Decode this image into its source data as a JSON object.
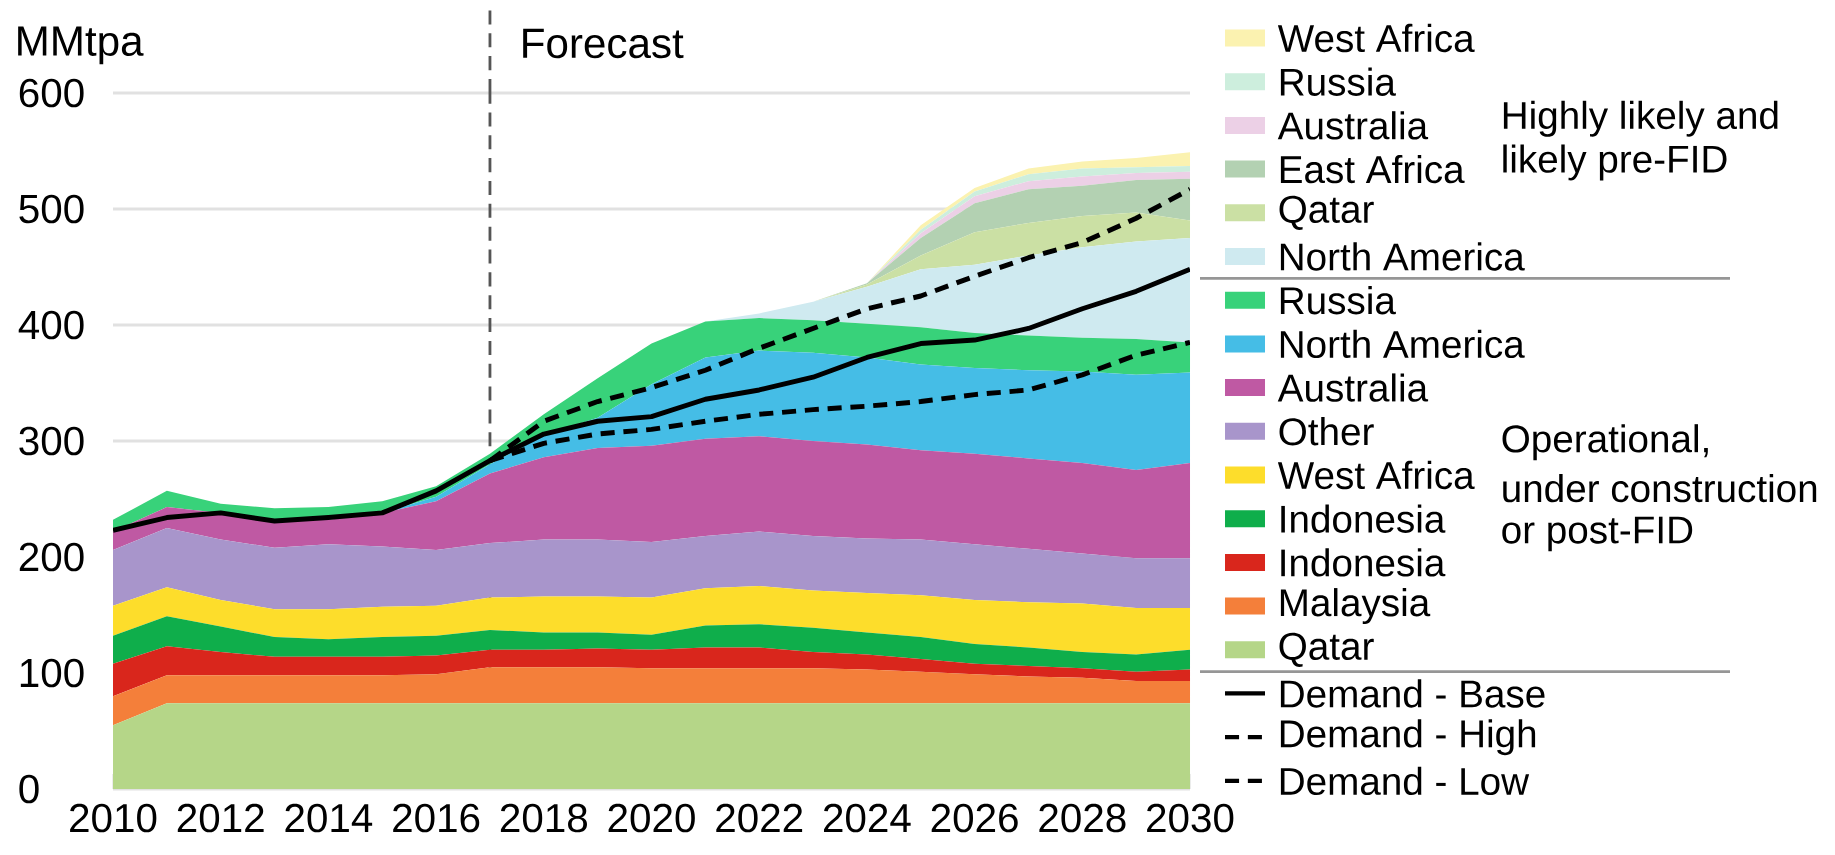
{
  "chart_data": {
    "type": "area",
    "stacked": true,
    "ylabel": "MMtpa",
    "x": [
      2010,
      2011,
      2012,
      2013,
      2014,
      2015,
      2016,
      2017,
      2018,
      2019,
      2020,
      2021,
      2022,
      2023,
      2024,
      2025,
      2026,
      2027,
      2028,
      2029,
      2030
    ],
    "xlim": [
      2010,
      2030
    ],
    "xticks": [
      2010,
      2012,
      2014,
      2016,
      2018,
      2020,
      2022,
      2024,
      2026,
      2028,
      2030
    ],
    "ylim": [
      0,
      600
    ],
    "yticks": [
      0,
      100,
      200,
      300,
      400,
      500,
      600
    ],
    "grid": "y",
    "legend": "right",
    "ref_lines": [
      {
        "axis": "x",
        "value": 2017,
        "label": "Forecast",
        "color": "#555555",
        "line_style": "dashed"
      }
    ],
    "annotations": [
      "Highly likely and",
      "likely pre-FID",
      "Operational,",
      "under construction",
      "or post-FID"
    ],
    "series": [
      {
        "name": "Qatar",
        "color": "#b5d688",
        "values": [
          55,
          74,
          74,
          74,
          74,
          74,
          74,
          74,
          74,
          74,
          74,
          74,
          74,
          74,
          74,
          74,
          74,
          74,
          74,
          74,
          74
        ]
      },
      {
        "name": "Malaysia",
        "color": "#f47f3a",
        "values": [
          25,
          24,
          24,
          24,
          24,
          24,
          25,
          31,
          31,
          31,
          30,
          30,
          30,
          30,
          29,
          27,
          25,
          23,
          22,
          19,
          19
        ]
      },
      {
        "name": "Indonesia",
        "color": "#d9261c",
        "values": [
          28,
          25,
          20,
          16,
          16,
          16,
          16,
          15,
          15,
          16,
          16,
          18,
          18,
          14,
          13,
          11,
          9,
          9,
          8,
          8,
          10
        ]
      },
      {
        "name": "Indonesia",
        "color": "#0fae4b",
        "values": [
          24,
          26,
          22,
          17,
          15,
          17,
          17,
          17,
          15,
          14,
          13,
          19,
          20,
          21,
          19,
          19,
          17,
          16,
          14,
          15,
          17
        ]
      },
      {
        "name": "West Africa",
        "color": "#fddd2b",
        "values": [
          26,
          25,
          23,
          24,
          26,
          26,
          26,
          28,
          31,
          31,
          32,
          32,
          33,
          32,
          34,
          36,
          38,
          39,
          42,
          40,
          36
        ]
      },
      {
        "name": "Other",
        "color": "#a895cb",
        "values": [
          48,
          51,
          52,
          53,
          56,
          52,
          48,
          47,
          49,
          49,
          48,
          45,
          47,
          47,
          47,
          48,
          48,
          46,
          43,
          43,
          43
        ]
      },
      {
        "name": "Australia",
        "color": "#bf59a3",
        "values": [
          16,
          18,
          23,
          23,
          21,
          29,
          42,
          60,
          71,
          79,
          83,
          84,
          82,
          82,
          81,
          77,
          78,
          78,
          78,
          76,
          82
        ]
      },
      {
        "name": "North America",
        "color": "#45bde6",
        "values": [
          0,
          0,
          0,
          0,
          0,
          0,
          4,
          8,
          19,
          26,
          53,
          70,
          74,
          76,
          75,
          74,
          74,
          76,
          79,
          82,
          78
        ]
      },
      {
        "name": "Russia",
        "color": "#38d27a",
        "values": [
          10,
          14,
          8,
          11,
          11,
          10,
          9,
          9,
          18,
          34,
          35,
          31,
          28,
          28,
          29,
          32,
          30,
          30,
          29,
          31,
          26
        ]
      },
      {
        "name": "North America",
        "color": "#cfeaf0",
        "values": [
          0,
          0,
          0,
          0,
          0,
          0,
          0,
          0,
          0,
          0,
          0,
          0,
          4,
          16,
          32,
          50,
          59,
          69,
          78,
          84,
          90
        ]
      },
      {
        "name": "Qatar",
        "color": "#cbe0a4",
        "values": [
          0,
          0,
          0,
          0,
          0,
          0,
          0,
          0,
          0,
          0,
          0,
          0,
          0,
          0,
          2,
          12,
          28,
          28,
          27,
          25,
          15
        ]
      },
      {
        "name": "East Africa",
        "color": "#b3d1b2",
        "values": [
          0,
          0,
          0,
          0,
          0,
          0,
          0,
          0,
          0,
          0,
          0,
          0,
          0,
          0,
          1,
          15,
          25,
          29,
          26,
          28,
          36
        ]
      },
      {
        "name": "Australia",
        "color": "#ecd0e6",
        "values": [
          0,
          0,
          0,
          0,
          0,
          0,
          0,
          0,
          0,
          0,
          0,
          0,
          0,
          0,
          0,
          4,
          6,
          7,
          8,
          6,
          6
        ]
      },
      {
        "name": "Russia",
        "color": "#cdeedd",
        "values": [
          0,
          0,
          0,
          0,
          0,
          0,
          0,
          0,
          0,
          0,
          0,
          0,
          0,
          0,
          0,
          3,
          4,
          6,
          7,
          5,
          5
        ]
      },
      {
        "name": "West Africa",
        "color": "#fbf2b0",
        "values": [
          0,
          0,
          0,
          0,
          0,
          0,
          0,
          0,
          0,
          0,
          0,
          0,
          0,
          0,
          0,
          4,
          3,
          5,
          6,
          8,
          12
        ]
      },
      {
        "name": "Demand - Base",
        "type": "line",
        "line_style": "solid",
        "color": "#000000",
        "x": [
          2010,
          2011,
          2012,
          2013,
          2014,
          2015,
          2016,
          2017,
          2018,
          2019,
          2020,
          2021,
          2022,
          2023,
          2024,
          2025,
          2026,
          2027,
          2028,
          2029,
          2030
        ],
        "values": [
          223,
          234,
          238,
          231,
          234,
          238,
          257,
          283,
          306,
          317,
          321,
          336,
          344,
          355,
          372,
          384,
          387,
          397,
          414,
          429,
          448
        ]
      },
      {
        "name": "Demand - High",
        "type": "line",
        "line_style": "dashed",
        "color": "#000000",
        "x": [
          2017,
          2018,
          2019,
          2020,
          2021,
          2022,
          2023,
          2024,
          2025,
          2026,
          2027,
          2028,
          2029,
          2030
        ],
        "values": [
          283,
          317,
          334,
          346,
          361,
          380,
          397,
          414,
          425,
          442,
          458,
          471,
          492,
          517
        ]
      },
      {
        "name": "Demand - Low",
        "type": "line",
        "line_style": "dashed",
        "color": "#000000",
        "x": [
          2017,
          2018,
          2019,
          2020,
          2021,
          2022,
          2023,
          2024,
          2025,
          2026,
          2027,
          2028,
          2029,
          2030
        ],
        "values": [
          283,
          298,
          306,
          310,
          317,
          323,
          327,
          330,
          334,
          340,
          344,
          357,
          374,
          385
        ]
      }
    ]
  }
}
